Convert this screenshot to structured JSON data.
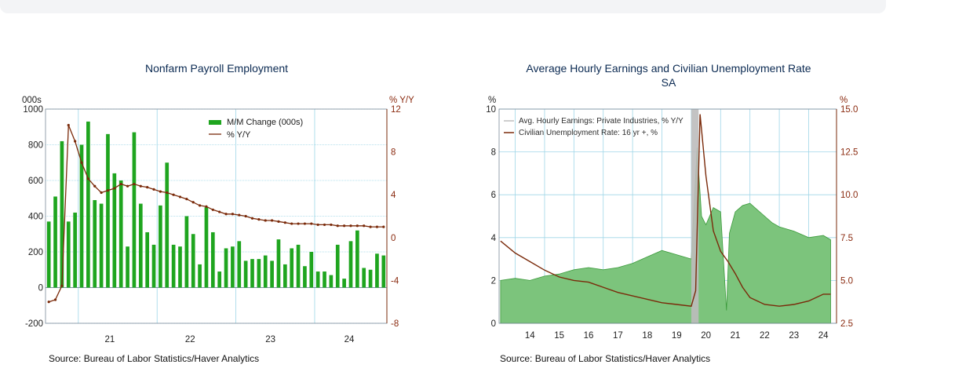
{
  "source_text": "Source:  Bureau of Labor Statistics/Haver Analytics",
  "colors": {
    "bar": "#1fa51f",
    "line": "#7a2a0a",
    "area_fill": "#7cc47c",
    "area_edge": "#3b9a3b",
    "grid": "#9fd6e8",
    "recession": "#bdbdbd"
  },
  "chart_data": [
    {
      "type": "bar",
      "title": "Nonfarm Payroll Employment",
      "left_unit": "000s",
      "right_unit": "% Y/Y",
      "left_ticks": [
        "1000",
        "800",
        "600",
        "400",
        "200",
        "0",
        "-200"
      ],
      "right_ticks": [
        "12",
        "8",
        "4",
        "0",
        "-4",
        "-8"
      ],
      "x_ticks": [
        "21",
        "22",
        "23",
        "24"
      ],
      "ylim_left": [
        -200,
        1000
      ],
      "ylim_right": [
        -8,
        12
      ],
      "legend_position": "top-right",
      "series": [
        {
          "name": "M/M Change (000s)",
          "kind": "bar",
          "axis": "left",
          "values": [
            370,
            510,
            820,
            370,
            420,
            800,
            930,
            490,
            470,
            860,
            640,
            600,
            230,
            870,
            470,
            310,
            240,
            460,
            700,
            240,
            230,
            400,
            300,
            130,
            450,
            310,
            90,
            220,
            230,
            260,
            150,
            160,
            160,
            180,
            150,
            270,
            130,
            220,
            240,
            120,
            200,
            90,
            90,
            70,
            240,
            50,
            260,
            320,
            110,
            100,
            190,
            180
          ]
        },
        {
          "name": "% Y/Y",
          "kind": "line",
          "axis": "right",
          "values": [
            -6,
            -5.8,
            -4.5,
            10.5,
            9,
            7,
            5.5,
            4.8,
            4.2,
            4.4,
            4.6,
            5,
            4.8,
            5,
            4.8,
            4.7,
            4.5,
            4.3,
            4.2,
            4,
            3.8,
            3.6,
            3.3,
            3,
            2.9,
            2.6,
            2.4,
            2.2,
            2.2,
            2.1,
            2,
            1.8,
            1.7,
            1.6,
            1.6,
            1.5,
            1.4,
            1.3,
            1.3,
            1.3,
            1.3,
            1.2,
            1.2,
            1.2,
            1.1,
            1.1,
            1.1,
            1.1,
            1.1,
            1,
            1,
            1
          ]
        }
      ]
    },
    {
      "type": "area",
      "title": "Average Hourly Earnings and Civilian Unemployment Rate",
      "subtitle": "SA",
      "left_unit": "%",
      "right_unit": "%",
      "left_ticks": [
        "10",
        "8",
        "6",
        "4",
        "2",
        "0"
      ],
      "right_ticks": [
        "15.0",
        "12.5",
        "10.0",
        "7.5",
        "5.0",
        "2.5"
      ],
      "x_ticks": [
        "14",
        "15",
        "16",
        "17",
        "18",
        "19",
        "20",
        "21",
        "22",
        "23",
        "24"
      ],
      "ylim_left": [
        0,
        10
      ],
      "ylim_right": [
        2.5,
        15
      ],
      "legend_position": "top-right",
      "series": [
        {
          "name": "Avg. Hourly Earnings: Private Industries, % Y/Y",
          "kind": "area",
          "axis": "left",
          "x": [
            2013.5,
            2014,
            2014.5,
            2015,
            2015.5,
            2016,
            2016.5,
            2017,
            2017.5,
            2018,
            2018.5,
            2019,
            2019.5,
            2020.0,
            2020.2,
            2020.35,
            2020.5,
            2020.75,
            2021,
            2021.2,
            2021.3,
            2021.5,
            2021.75,
            2022,
            2022.25,
            2022.5,
            2022.75,
            2023,
            2023.5,
            2024,
            2024.5,
            2024.75
          ],
          "values": [
            2.0,
            2.1,
            2.0,
            2.2,
            2.3,
            2.5,
            2.6,
            2.5,
            2.6,
            2.8,
            3.1,
            3.4,
            3.2,
            3.0,
            8.2,
            5.0,
            4.6,
            5.4,
            5.2,
            0.6,
            4.2,
            5.2,
            5.5,
            5.6,
            5.3,
            5.0,
            4.7,
            4.5,
            4.3,
            4.0,
            4.1,
            3.9
          ]
        },
        {
          "name": "Civilian Unemployment Rate: 16 yr +, %",
          "kind": "line",
          "axis": "right",
          "x": [
            2013.5,
            2014,
            2014.5,
            2015,
            2015.5,
            2016,
            2016.5,
            2017,
            2017.5,
            2018,
            2018.5,
            2019,
            2019.5,
            2020.0,
            2020.15,
            2020.3,
            2020.5,
            2020.75,
            2021,
            2021.25,
            2021.5,
            2021.75,
            2022,
            2022.5,
            2023,
            2023.5,
            2024,
            2024.5,
            2024.75
          ],
          "values": [
            7.3,
            6.6,
            6.1,
            5.6,
            5.2,
            5.0,
            4.9,
            4.6,
            4.3,
            4.1,
            3.9,
            3.7,
            3.6,
            3.5,
            4.4,
            14.7,
            11.1,
            7.9,
            6.7,
            6.1,
            5.4,
            4.6,
            4.0,
            3.6,
            3.5,
            3.6,
            3.8,
            4.2,
            4.2
          ]
        }
      ],
      "recession_band": {
        "from": 2020.0,
        "to": 2020.25
      }
    }
  ]
}
